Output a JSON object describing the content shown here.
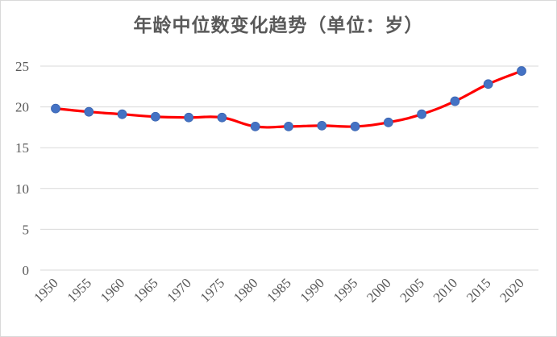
{
  "chart_data": {
    "type": "line",
    "title": "年龄中位数变化趋势（单位：岁）",
    "xlabel": "",
    "ylabel": "",
    "x": [
      "1950",
      "1955",
      "1960",
      "1965",
      "1970",
      "1975",
      "1980",
      "1985",
      "1990",
      "1995",
      "2000",
      "2005",
      "2010",
      "2015",
      "2020"
    ],
    "series": [
      {
        "values": [
          19.8,
          19.4,
          19.1,
          18.8,
          18.7,
          18.7,
          17.6,
          17.6,
          17.7,
          17.6,
          18.1,
          19.1,
          20.7,
          22.8,
          24.4
        ]
      }
    ],
    "ylim": [
      0,
      25
    ],
    "yticks": [
      "0",
      "5",
      "10",
      "15",
      "20",
      "25"
    ],
    "grid": true,
    "legend": "none",
    "colors": {
      "line": "#ff0000",
      "marker": "#4472c4",
      "grid": "#d9d9d9",
      "text": "#595959"
    }
  }
}
